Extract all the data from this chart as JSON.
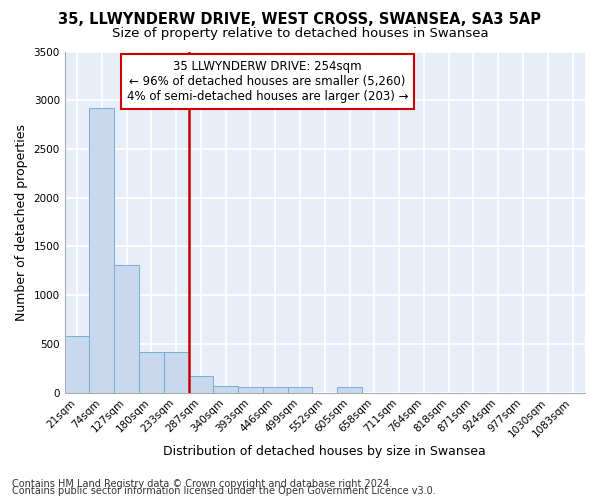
{
  "title": "35, LLWYNDERW DRIVE, WEST CROSS, SWANSEA, SA3 5AP",
  "subtitle": "Size of property relative to detached houses in Swansea",
  "xlabel": "Distribution of detached houses by size in Swansea",
  "ylabel": "Number of detached properties",
  "bar_color": "#c8d9ef",
  "bar_edge_color": "#7aadd4",
  "categories": [
    "21sqm",
    "74sqm",
    "127sqm",
    "180sqm",
    "233sqm",
    "287sqm",
    "340sqm",
    "393sqm",
    "446sqm",
    "499sqm",
    "552sqm",
    "605sqm",
    "658sqm",
    "711sqm",
    "764sqm",
    "818sqm",
    "871sqm",
    "924sqm",
    "977sqm",
    "1030sqm",
    "1083sqm"
  ],
  "values": [
    580,
    2920,
    1310,
    415,
    420,
    175,
    65,
    55,
    55,
    60,
    0,
    60,
    0,
    0,
    0,
    0,
    0,
    0,
    0,
    0,
    0
  ],
  "annotation_title": "35 LLWYNDERW DRIVE: 254sqm",
  "annotation_line1": "← 96% of detached houses are smaller (5,260)",
  "annotation_line2": "4% of semi-detached houses are larger (203) →",
  "vline_color": "#cc0000",
  "annotation_box_color": "#ffffff",
  "annotation_box_edge": "#cc0000",
  "footnote1": "Contains HM Land Registry data © Crown copyright and database right 2024.",
  "footnote2": "Contains public sector information licensed under the Open Government Licence v3.0.",
  "ylim": [
    0,
    3500
  ],
  "yticks": [
    0,
    500,
    1000,
    1500,
    2000,
    2500,
    3000,
    3500
  ],
  "background_color": "#e8eef8",
  "grid_color": "#ffffff",
  "fig_background": "#ffffff",
  "title_fontsize": 10.5,
  "subtitle_fontsize": 9.5,
  "axis_label_fontsize": 9,
  "tick_fontsize": 7.5,
  "annotation_fontsize": 8.5,
  "footnote_fontsize": 7
}
